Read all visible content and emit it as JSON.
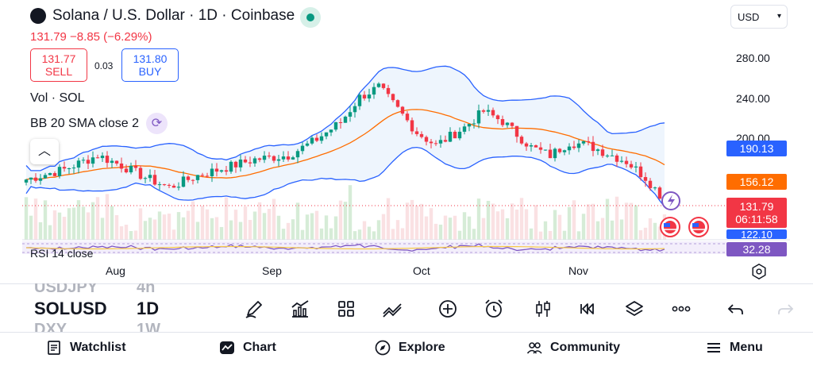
{
  "header": {
    "title": "Solana / U.S. Dollar · 1D · Coinbase",
    "quote": "131.79  −8.85 (−6.29%)",
    "sell_price": "131.77",
    "sell_label": "SELL",
    "spread": "0.03",
    "buy_price": "131.80",
    "buy_label": "BUY",
    "currency": "USD"
  },
  "indicators": {
    "volume_label": "Vol · SOL",
    "bb_label": "BB 20 SMA close 2",
    "rsi_label": "RSI 14 close"
  },
  "price_axis": {
    "ticks": [
      "280.00",
      "240.00",
      "200.00"
    ],
    "badges": {
      "bb_upper": "190.13",
      "bb_basis": "156.12",
      "last_price": "131.79",
      "countdown": "06:11:58",
      "bb_lower": "122.10",
      "rsi": "32.28"
    },
    "badge_colors": {
      "bb_upper": "#2962ff",
      "bb_basis": "#ff6d00",
      "last_price": "#f23645",
      "bb_lower": "#2962ff",
      "rsi": "#7e57c2"
    }
  },
  "time_axis": {
    "ticks": [
      "Aug",
      "Sep",
      "Oct",
      "Nov"
    ]
  },
  "symbol_picker": {
    "prev_symbol": "USDJPY",
    "prev_interval": "4h",
    "symbol": "SOLUSD",
    "interval": "1D",
    "next_symbol": "DXY",
    "next_interval": "1W"
  },
  "toolbar": {
    "tools": [
      "pencil-icon",
      "bar-chart-icon",
      "grid-icon",
      "trend-lines-icon",
      "plus-circle-icon",
      "alarm-icon",
      "candles-icon",
      "replay-icon",
      "layers-icon",
      "more-icon",
      "undo-icon",
      "redo-icon"
    ]
  },
  "bottom_nav": {
    "watchlist": "Watchlist",
    "chart": "Chart",
    "explore": "Explore",
    "community": "Community",
    "menu": "Menu"
  },
  "colors": {
    "up": "#089981",
    "down": "#f23645",
    "bb_band": "#2962ff",
    "bb_basis": "#ff6d00",
    "rsi": "#7e57c2"
  }
}
